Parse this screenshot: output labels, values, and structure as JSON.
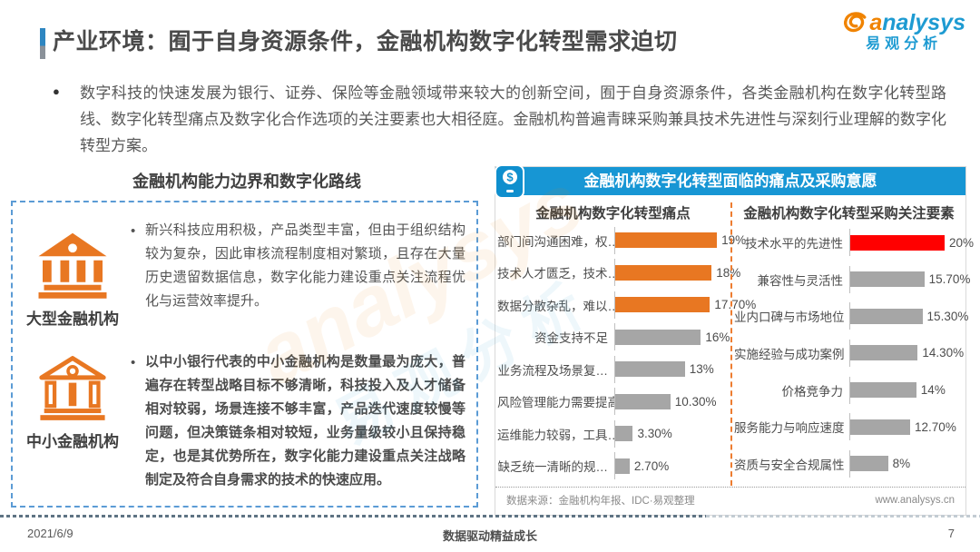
{
  "page": {
    "title": "产业环境：囿于自身资源条件，金融机构数字化转型需求迫切",
    "intro": "数字科技的快速发展为银行、证券、保险等金融领域带来较大的创新空间，囿于自身资源条件，各类金融机构在数字化转型路线、数字化转型痛点及数字化合作选项的关注要素也大相径庭。金融机构普遍青睐采购兼具技术先进性与深刻行业理解的数字化转型方案。"
  },
  "logo": {
    "brand": "analysys",
    "brand_cn": "易观分析"
  },
  "left_panel": {
    "title": "金融机构能力边界和数字化路线",
    "items": [
      {
        "label": "大型金融机构",
        "text": "新兴科技应用积极，产品类型丰富，但由于组织结构较为复杂，因此审核流程制度相对繁琐，且存在大量历史遗留数据信息，数字化能力建设重点关注流程优化与运营效率提升。"
      },
      {
        "label": "中小金融机构",
        "text": "以中小银行代表的中小金融机构是数量最为庞大，普遍存在转型战略目标不够清晰，科技投入及人才储备相对较弱，场景连接不够丰富，产品迭代速度较慢等问题，但决策链条相对较短，业务量级较小且保持稳定，也是其优势所在，数字化能力建设重点关注战略制定及符合自身需求的技术的快速应用。"
      }
    ]
  },
  "right_panel": {
    "banner": "金融机构数字化转型面临的痛点及采购意愿",
    "source": "数据来源：金融机构年报、IDC·易观整理",
    "website": "www.analysys.cn"
  },
  "chart_data": [
    {
      "type": "bar",
      "orientation": "horizontal",
      "title": "金融机构数字化转型痛点",
      "categories": [
        "部门间沟通困难，权…",
        "技术人才匮乏，技术…",
        "数据分散杂乱，难以…",
        "资金支持不足",
        "业务流程及场景复…",
        "风险管理能力需要提高",
        "运维能力较弱，工具…",
        "缺乏统一清晰的规…"
      ],
      "values": [
        19,
        18,
        17.7,
        16,
        13,
        10.3,
        3.3,
        2.7
      ],
      "value_labels": [
        "19%",
        "18%",
        "17.70%",
        "16%",
        "13%",
        "10.30%",
        "3.30%",
        "2.70%"
      ],
      "bar_colors": [
        "#E87722",
        "#E87722",
        "#E87722",
        "#A6A6A6",
        "#A6A6A6",
        "#A6A6A6",
        "#A6A6A6",
        "#A6A6A6"
      ],
      "xlim": [
        0,
        20
      ],
      "grid": false,
      "legend": false
    },
    {
      "type": "bar",
      "orientation": "horizontal",
      "title": "金融机构数字化转型采购关注要素",
      "categories": [
        "技术水平的先进性",
        "兼容性与灵活性",
        "业内口碑与市场地位",
        "实施经验与成功案例",
        "价格竞争力",
        "服务能力与响应速度",
        "资质与安全合规属性"
      ],
      "values": [
        20,
        15.7,
        15.3,
        14.3,
        14,
        12.7,
        8
      ],
      "value_labels": [
        "20%",
        "15.70%",
        "15.30%",
        "14.30%",
        "14%",
        "12.70%",
        "8%"
      ],
      "bar_colors": [
        "#FF0000",
        "#A6A6A6",
        "#A6A6A6",
        "#A6A6A6",
        "#A6A6A6",
        "#A6A6A6",
        "#A6A6A6"
      ],
      "xlim": [
        0,
        20
      ],
      "grid": false,
      "legend": false
    }
  ],
  "colors": {
    "accent_blue": "#1796D4",
    "accent_orange": "#E87722",
    "highlight_red": "#FF0000",
    "bar_gray": "#A6A6A6",
    "dashed_border_blue": "#5B9BD5"
  },
  "footer": {
    "date": "2021/6/9",
    "slogan": "数据驱动精益成长",
    "page_number": "7"
  }
}
